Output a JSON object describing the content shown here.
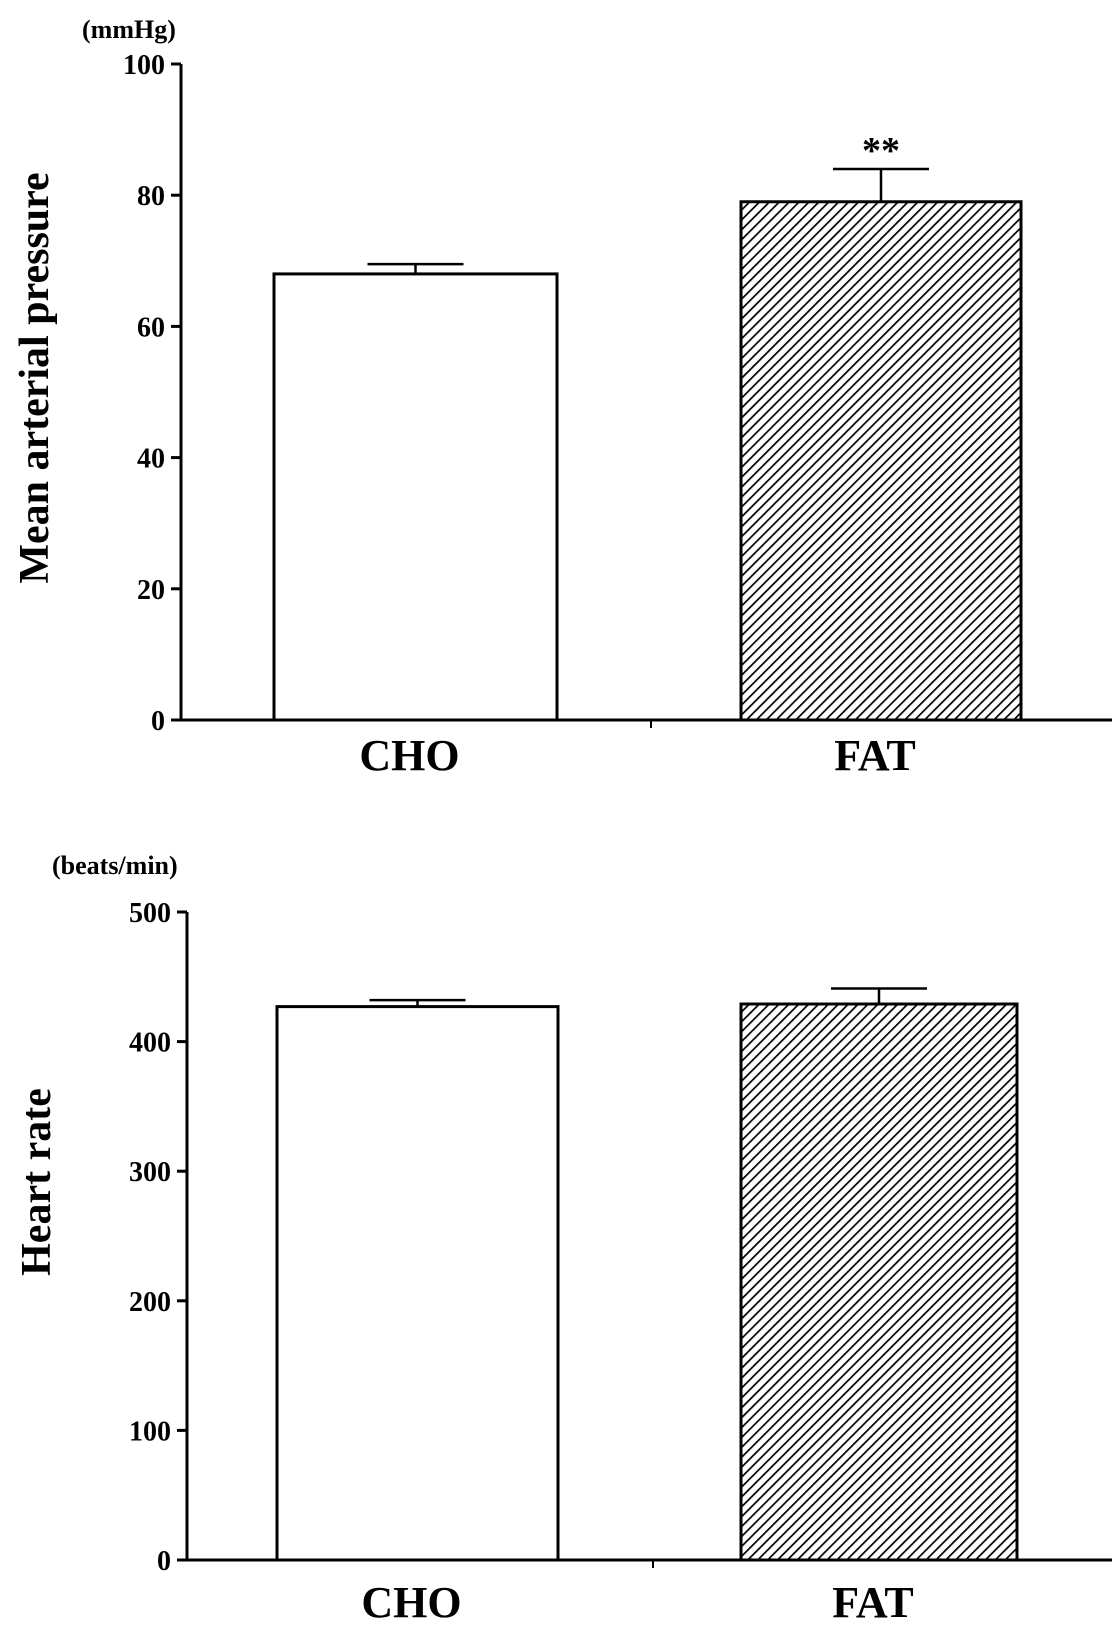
{
  "chart_data": [
    {
      "type": "bar",
      "categories": [
        "CHO",
        "FAT"
      ],
      "values": [
        68,
        79
      ],
      "errors": [
        1.5,
        5
      ],
      "unit": "(mmHg)",
      "ylabel": "Mean arterial pressure",
      "xlabel": "",
      "ylim": [
        0,
        100
      ],
      "yticks": [
        "0",
        "20",
        "40",
        "60",
        "80",
        "100"
      ],
      "grid": false,
      "fills": [
        "white",
        "hatched"
      ],
      "annotations": [
        {
          "category": "FAT",
          "text": "**"
        }
      ]
    },
    {
      "type": "bar",
      "categories": [
        "CHO",
        "FAT"
      ],
      "values": [
        427,
        429
      ],
      "errors": [
        5,
        12
      ],
      "unit": "(beats/min)",
      "ylabel": "Heart rate",
      "xlabel": "",
      "ylim": [
        0,
        500
      ],
      "yticks": [
        "0",
        "100",
        "200",
        "300",
        "400",
        "500"
      ],
      "grid": false,
      "fills": [
        "white",
        "hatched"
      ],
      "annotations": []
    }
  ]
}
